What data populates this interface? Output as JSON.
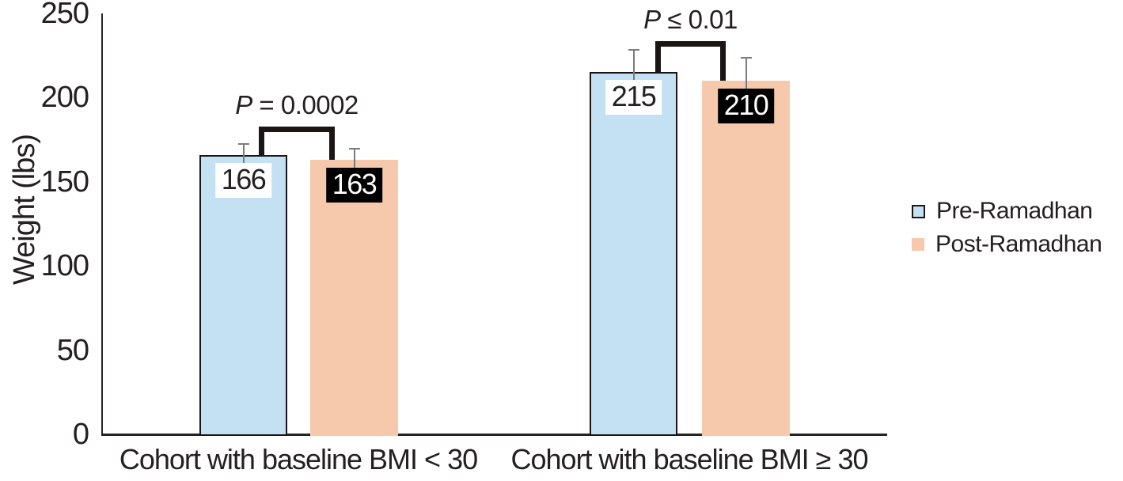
{
  "page": {
    "background": "#ffffff",
    "text_color": "#242020",
    "axis_color": "#262222"
  },
  "chart_data": {
    "type": "bar",
    "title": "",
    "xlabel": "",
    "ylabel": "Weight (lbs)",
    "ylim": [
      0,
      250
    ],
    "yticks": [
      0,
      50,
      100,
      150,
      200,
      250
    ],
    "grid": false,
    "legend_position": "right",
    "categories": [
      "Cohort with baseline BMI < 30",
      "Cohort with baseline BMI ≥ 30"
    ],
    "series": [
      {
        "name": "Pre-Ramadhan",
        "values": [
          166,
          215
        ],
        "errors_plus": [
          7,
          14
        ],
        "fill": "#c3e1f2",
        "border_color": "#1b1615",
        "value_label_bg": "#ffffff",
        "value_label_color": "#242020"
      },
      {
        "name": "Post-Ramadhan",
        "values": [
          163,
          210
        ],
        "errors_plus": [
          7,
          14
        ],
        "fill": "#f6c9ac",
        "border_color": "",
        "value_label_bg": "#000000",
        "value_label_color": "#ffffff"
      }
    ],
    "significance_annotations": [
      {
        "category_index": 0,
        "text": "P = 0.0002"
      },
      {
        "category_index": 1,
        "text": "P ≤ 0.01"
      }
    ],
    "error_bar_color": "#7b7b7b",
    "bracket_color": "#1b1615"
  }
}
